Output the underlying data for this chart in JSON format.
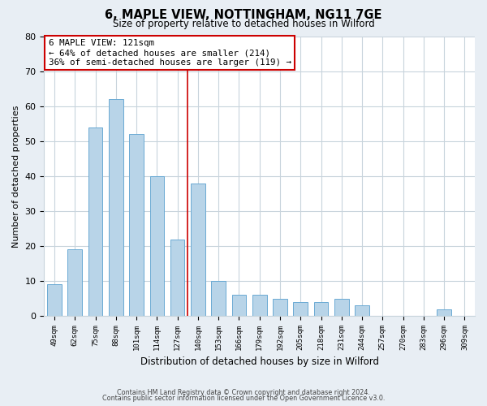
{
  "title": "6, MAPLE VIEW, NOTTINGHAM, NG11 7GE",
  "subtitle": "Size of property relative to detached houses in Wilford",
  "xlabel": "Distribution of detached houses by size in Wilford",
  "ylabel": "Number of detached properties",
  "bar_labels": [
    "49sqm",
    "62sqm",
    "75sqm",
    "88sqm",
    "101sqm",
    "114sqm",
    "127sqm",
    "140sqm",
    "153sqm",
    "166sqm",
    "179sqm",
    "192sqm",
    "205sqm",
    "218sqm",
    "231sqm",
    "244sqm",
    "257sqm",
    "270sqm",
    "283sqm",
    "296sqm",
    "309sqm"
  ],
  "bar_values": [
    9,
    19,
    54,
    62,
    52,
    40,
    22,
    38,
    10,
    6,
    6,
    5,
    4,
    4,
    5,
    3,
    0,
    0,
    0,
    2,
    0
  ],
  "bar_color": "#b8d4e8",
  "bar_edge_color": "#6aaad4",
  "ylim": [
    0,
    80
  ],
  "yticks": [
    0,
    10,
    20,
    30,
    40,
    50,
    60,
    70,
    80
  ],
  "property_line_x": 6.5,
  "property_line_color": "#cc0000",
  "annotation_text": "6 MAPLE VIEW: 121sqm\n← 64% of detached houses are smaller (214)\n36% of semi-detached houses are larger (119) →",
  "annotation_box_color": "#ffffff",
  "annotation_box_edge": "#cc0000",
  "footer_line1": "Contains HM Land Registry data © Crown copyright and database right 2024.",
  "footer_line2": "Contains public sector information licensed under the Open Government Licence v3.0.",
  "background_color": "#e8eef4",
  "plot_bg_color": "#ffffff",
  "grid_color": "#c8d4dc"
}
